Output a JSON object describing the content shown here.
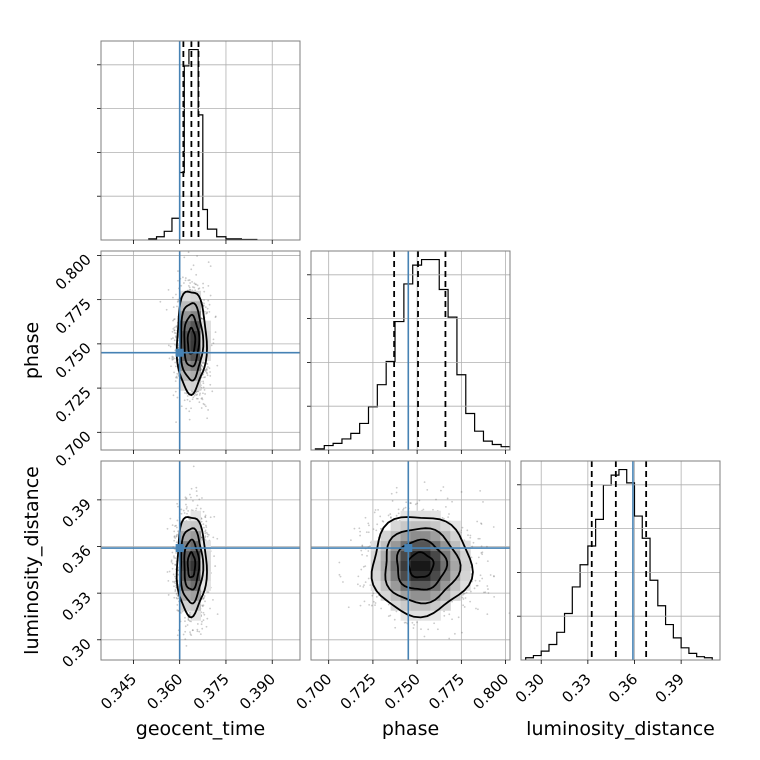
{
  "chart_data": {
    "type": "corner",
    "parameters": [
      "geocent_time",
      "phase",
      "luminosity_distance"
    ],
    "truths": [
      0.36,
      0.745,
      0.359
    ],
    "truth_color": "#4682b4",
    "grid": true,
    "axes": {
      "geocent_time": {
        "range": [
          0.3345,
          0.399
        ],
        "ticks": [
          0.345,
          0.36,
          0.375,
          0.39
        ],
        "tick_labels": [
          "0.345",
          "0.360",
          "0.375",
          "0.390"
        ]
      },
      "phase": {
        "range": [
          0.69,
          0.8025
        ],
        "ticks": [
          0.7,
          0.725,
          0.75,
          0.775,
          0.8
        ],
        "tick_labels": [
          "0.700",
          "0.725",
          "0.750",
          "0.775",
          "0.800"
        ]
      },
      "luminosity_distance": {
        "range": [
          0.287,
          0.415
        ],
        "ticks": [
          0.3,
          0.33,
          0.36,
          0.39
        ],
        "tick_labels": [
          "0.30",
          "0.33",
          "0.36",
          "0.39"
        ]
      }
    },
    "marginals": [
      {
        "parameter": "geocent_time",
        "bins": [
          0.35,
          0.3525,
          0.355,
          0.3575,
          0.36,
          0.3615,
          0.363,
          0.3645,
          0.366,
          0.3675,
          0.369,
          0.372,
          0.375,
          0.38,
          0.385
        ],
        "counts": [
          1,
          3,
          8,
          20,
          62,
          160,
          175,
          175,
          115,
          28,
          10,
          3,
          1,
          0.5
        ],
        "quantiles": [
          0.3612,
          0.3638,
          0.3661
        ]
      },
      {
        "parameter": "phase",
        "bins": [
          0.6925,
          0.6975,
          0.7025,
          0.7075,
          0.7125,
          0.7175,
          0.7225,
          0.7275,
          0.7325,
          0.7375,
          0.7425,
          0.7475,
          0.7525,
          0.7575,
          0.7625,
          0.7675,
          0.7725,
          0.7775,
          0.7825,
          0.7875,
          0.7925,
          0.7975,
          0.8025
        ],
        "counts": [
          1,
          4,
          6,
          10,
          15,
          24,
          39,
          59,
          80,
          116,
          150,
          167,
          172,
          172,
          145,
          120,
          68,
          33,
          17,
          8,
          5,
          3
        ],
        "quantiles": [
          0.737,
          0.7505,
          0.766
        ]
      },
      {
        "parameter": "luminosity_distance",
        "bins": [
          0.29,
          0.295,
          0.3,
          0.305,
          0.31,
          0.315,
          0.32,
          0.325,
          0.33,
          0.335,
          0.34,
          0.345,
          0.35,
          0.355,
          0.36,
          0.365,
          0.37,
          0.375,
          0.38,
          0.385,
          0.39,
          0.395,
          0.4,
          0.405,
          0.41
        ],
        "counts": [
          2,
          4,
          8,
          14,
          25,
          42,
          66,
          86,
          103,
          127,
          158,
          167,
          172,
          160,
          130,
          110,
          72,
          49,
          32,
          20,
          11,
          6,
          3,
          2
        ],
        "quantiles": [
          0.3325,
          0.348,
          0.3675
        ]
      }
    ],
    "pair_densities": [
      {
        "x": "geocent_time",
        "y": "phase",
        "center": [
          0.3638,
          0.7515
        ],
        "sigma": [
          0.0024,
          0.0145
        ]
      },
      {
        "x": "geocent_time",
        "y": "luminosity_distance",
        "center": [
          0.3638,
          0.348
        ],
        "sigma": [
          0.0024,
          0.016
        ]
      },
      {
        "x": "phase",
        "y": "luminosity_distance",
        "center": [
          0.752,
          0.348
        ],
        "sigma": [
          0.014,
          0.016
        ]
      }
    ]
  }
}
